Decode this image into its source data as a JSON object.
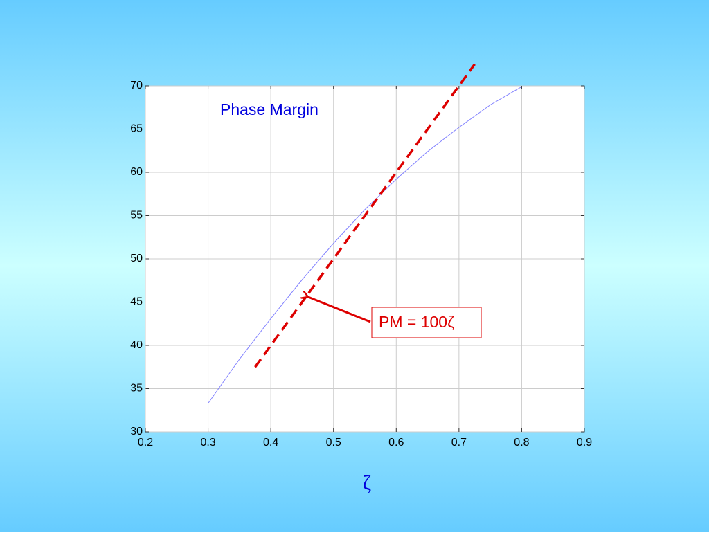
{
  "chart_data": {
    "type": "line",
    "x_label": "ζ",
    "xlim": [
      0.2,
      0.9
    ],
    "xticks": [
      0.2,
      0.3,
      0.4,
      0.5,
      0.6,
      0.7,
      0.8,
      0.9
    ],
    "ylim": [
      30,
      70
    ],
    "yticks": [
      30,
      35,
      40,
      45,
      50,
      55,
      60,
      65,
      70
    ],
    "grid": true,
    "series": [
      {
        "name": "Phase Margin",
        "color": "#8080ff",
        "x": [
          0.3,
          0.35,
          0.4,
          0.45,
          0.5,
          0.55,
          0.6,
          0.65,
          0.7,
          0.75,
          0.8
        ],
        "values": [
          33.3,
          38.4,
          43.1,
          47.6,
          51.8,
          55.7,
          59.2,
          62.4,
          65.2,
          67.8,
          69.9
        ]
      },
      {
        "name": "PM = 100ζ",
        "color": "#dd0000",
        "dashed": true,
        "x": [
          0.375,
          0.725
        ],
        "values": [
          37.5,
          72.5
        ]
      }
    ]
  }
}
